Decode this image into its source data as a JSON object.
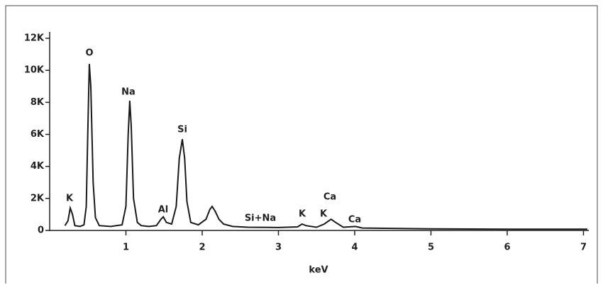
{
  "chart_data": {
    "type": "line",
    "x_label": "keV",
    "xlim": [
      0,
      7.07
    ],
    "xticks": [
      1,
      2,
      3,
      4,
      5,
      6,
      7
    ],
    "ylim": [
      0,
      12400
    ],
    "yticks": [
      0,
      {
        "value": 2000,
        "label": "2K"
      },
      {
        "value": 4000,
        "label": "4K"
      },
      {
        "value": 6000,
        "label": "6K"
      },
      {
        "value": 8000,
        "label": "8K"
      },
      {
        "value": 10000,
        "label": "10K"
      },
      {
        "value": 12000,
        "label": "12K"
      }
    ],
    "series": [
      {
        "color": "#1a1a1a",
        "x": [
          0.2,
          0.24,
          0.27,
          0.3,
          0.33,
          0.4,
          0.45,
          0.48,
          0.5,
          0.52,
          0.54,
          0.57,
          0.6,
          0.65,
          0.8,
          0.95,
          1.0,
          1.03,
          1.05,
          1.07,
          1.1,
          1.15,
          1.2,
          1.3,
          1.4,
          1.46,
          1.49,
          1.53,
          1.6,
          1.66,
          1.7,
          1.74,
          1.77,
          1.8,
          1.85,
          1.95,
          2.05,
          2.1,
          2.13,
          2.17,
          2.22,
          2.28,
          2.4,
          2.6,
          3.0,
          3.25,
          3.31,
          3.36,
          3.5,
          3.6,
          3.69,
          3.75,
          3.85,
          4.01,
          4.1,
          5.0,
          6.0,
          7.05
        ],
        "values": [
          300,
          600,
          1400,
          1000,
          300,
          250,
          350,
          1500,
          6000,
          10400,
          9000,
          3000,
          800,
          300,
          250,
          350,
          1500,
          6000,
          8100,
          6500,
          2000,
          500,
          300,
          250,
          300,
          700,
          850,
          500,
          400,
          1500,
          4500,
          5700,
          4500,
          1800,
          500,
          350,
          700,
          1300,
          1500,
          1200,
          700,
          400,
          250,
          200,
          180,
          220,
          400,
          300,
          200,
          400,
          700,
          500,
          200,
          250,
          150,
          100,
          80,
          80
        ]
      }
    ],
    "annotations": [
      "K",
      "O",
      "Na",
      "Al",
      "Si",
      "Si+Na",
      "K",
      "K",
      "Ca",
      "Ca"
    ]
  }
}
